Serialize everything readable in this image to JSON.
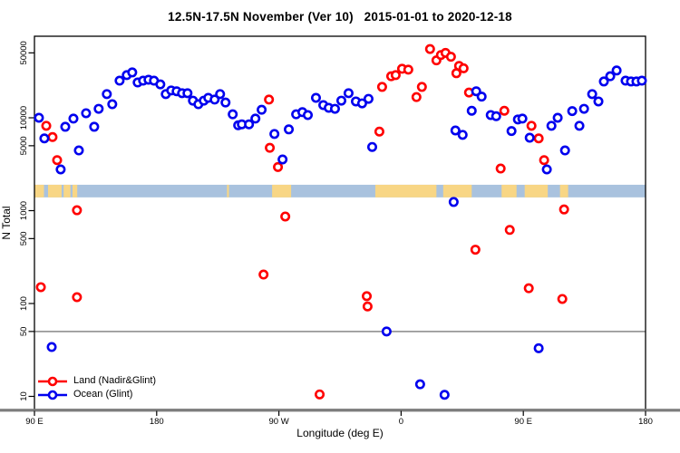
{
  "title": "12.5N-17.5N November (Ver 10)   2015-01-01 to 2020-12-18",
  "chart_data": {
    "type": "scatter",
    "title": "12.5N-17.5N November (Ver 10)   2015-01-01 to 2020-12-18",
    "xlabel": "Longitude (deg E)",
    "ylabel": "N Total",
    "x_axis": {
      "tick_labels": [
        "90 E",
        "180",
        "90 W",
        "0",
        "90 E",
        "180"
      ],
      "tick_offsets_deg": [
        0,
        90,
        180,
        270,
        360,
        450
      ],
      "range_deg": [
        0,
        450
      ],
      "note": "longitude plotted eastward starting at 90E, wrapping 180 -> 90W -> 0 -> 90E -> 180"
    },
    "y_axis": {
      "scale": "log",
      "ticks": [
        10,
        50,
        100,
        500,
        1000,
        5000,
        10000,
        50000
      ],
      "range": [
        7,
        75000
      ]
    },
    "hline": 50,
    "grid": "off",
    "legend_position": "bottom-left-inside",
    "series": [
      {
        "name": "Land (Nadir&Glint)",
        "color": "#ff0000",
        "points": [
          [
            4.7,
            150
          ],
          [
            8.7,
            8200
          ],
          [
            13.3,
            6200
          ],
          [
            16.7,
            3500
          ],
          [
            31.3,
            1010
          ],
          [
            31.3,
            117
          ],
          [
            168.7,
            205
          ],
          [
            172.7,
            15700
          ],
          [
            173.3,
            4750
          ],
          [
            179.3,
            2950
          ],
          [
            184.7,
            865
          ],
          [
            210,
            10.5
          ],
          [
            244.7,
            120
          ],
          [
            245.3,
            93
          ],
          [
            254,
            7100
          ],
          [
            256,
            21500
          ],
          [
            262.7,
            28000
          ],
          [
            266,
            28800
          ],
          [
            270.7,
            33700
          ],
          [
            275.3,
            33000
          ],
          [
            281.3,
            16700
          ],
          [
            285.3,
            21500
          ],
          [
            291.3,
            55000
          ],
          [
            296,
            41500
          ],
          [
            299.3,
            47400
          ],
          [
            302.7,
            50000
          ],
          [
            306.7,
            45400
          ],
          [
            310.7,
            30200
          ],
          [
            312.7,
            36200
          ],
          [
            316,
            34100
          ],
          [
            320,
            18700
          ],
          [
            324.7,
            380
          ],
          [
            343.3,
            2840
          ],
          [
            346,
            11900
          ],
          [
            350,
            620
          ],
          [
            364,
            146
          ],
          [
            366,
            8200
          ],
          [
            371.3,
            6000
          ],
          [
            375.3,
            3500
          ],
          [
            388.7,
            112
          ],
          [
            390,
            1030
          ]
        ]
      },
      {
        "name": "Ocean (Glint)",
        "color": "#0000ee",
        "points": [
          [
            3.3,
            10000
          ],
          [
            7.3,
            6000
          ],
          [
            12.7,
            34
          ],
          [
            19.3,
            2780
          ],
          [
            22.7,
            8000
          ],
          [
            28.7,
            9800
          ],
          [
            32.7,
            4450
          ],
          [
            38,
            11200
          ],
          [
            44,
            8000
          ],
          [
            47.3,
            12500
          ],
          [
            53.3,
            18000
          ],
          [
            57.3,
            14000
          ],
          [
            62.7,
            25100
          ],
          [
            68,
            28800
          ],
          [
            72,
            30800
          ],
          [
            76,
            24000
          ],
          [
            80,
            25100
          ],
          [
            84,
            25700
          ],
          [
            88,
            25100
          ],
          [
            92.7,
            22900
          ],
          [
            96.7,
            18000
          ],
          [
            100.7,
            19700
          ],
          [
            104.7,
            19300
          ],
          [
            108.7,
            18400
          ],
          [
            112.7,
            18400
          ],
          [
            116.7,
            15300
          ],
          [
            120.7,
            14000
          ],
          [
            124.7,
            15300
          ],
          [
            128,
            16400
          ],
          [
            132.7,
            15700
          ],
          [
            136.7,
            18000
          ],
          [
            140.7,
            14600
          ],
          [
            146,
            10900
          ],
          [
            150,
            8300
          ],
          [
            152.7,
            8500
          ],
          [
            158,
            8500
          ],
          [
            162.7,
            9800
          ],
          [
            167.3,
            12200
          ],
          [
            176.7,
            6700
          ],
          [
            182.7,
            3560
          ],
          [
            187.3,
            7500
          ],
          [
            192.7,
            10900
          ],
          [
            197.3,
            11500
          ],
          [
            201.3,
            10700
          ],
          [
            207.3,
            16400
          ],
          [
            212.7,
            13700
          ],
          [
            216.7,
            12800
          ],
          [
            221.3,
            12500
          ],
          [
            226,
            15300
          ],
          [
            231.3,
            18400
          ],
          [
            236.7,
            15000
          ],
          [
            241.3,
            14300
          ],
          [
            246,
            16000
          ],
          [
            248.7,
            4850
          ],
          [
            259.3,
            50
          ],
          [
            284,
            13.5
          ],
          [
            302,
            10.4
          ],
          [
            308.7,
            1240
          ],
          [
            310,
            7300
          ],
          [
            315.3,
            6550
          ],
          [
            322,
            11900
          ],
          [
            325.3,
            19300
          ],
          [
            329.3,
            16900
          ],
          [
            336,
            10700
          ],
          [
            340,
            10400
          ],
          [
            351.3,
            7200
          ],
          [
            356,
            9600
          ],
          [
            359.3,
            9800
          ],
          [
            364.7,
            6100
          ],
          [
            371.3,
            33
          ],
          [
            377.3,
            2780
          ],
          [
            380.7,
            8200
          ],
          [
            385.3,
            10000
          ],
          [
            390.7,
            4450
          ],
          [
            396,
            11800
          ],
          [
            401.3,
            8200
          ],
          [
            404.7,
            12500
          ],
          [
            410.7,
            18000
          ],
          [
            415.3,
            15000
          ],
          [
            419.3,
            24600
          ],
          [
            424,
            28000
          ],
          [
            428.7,
            32300
          ],
          [
            435.3,
            25100
          ],
          [
            439.3,
            24600
          ],
          [
            443.3,
            24600
          ],
          [
            447.3,
            25100
          ]
        ]
      }
    ],
    "map_band": {
      "n_top": 1900,
      "n_bottom": 1390,
      "ocean_color": "#a9c2de",
      "land_color": "#f8d685",
      "land_segments_deg": [
        [
          0,
          7
        ],
        [
          10,
          20
        ],
        [
          21.5,
          26.5
        ],
        [
          28,
          31.5
        ],
        [
          141.8,
          143.2
        ],
        [
          175,
          189
        ],
        [
          251,
          296
        ],
        [
          301,
          322
        ],
        [
          344,
          355
        ],
        [
          361,
          378
        ],
        [
          387,
          393
        ]
      ]
    },
    "style": {
      "frame_color": "#000000",
      "hline_color": "#999999",
      "baseline_color": "#7d7d7d",
      "point_radius": 4.2,
      "point_stroke_width": 2.6
    }
  },
  "legend": {
    "items": [
      {
        "label": "Land (Nadir&Glint)",
        "color": "#ff0000"
      },
      {
        "label": "Ocean (Glint)",
        "color": "#0000ee"
      }
    ]
  }
}
